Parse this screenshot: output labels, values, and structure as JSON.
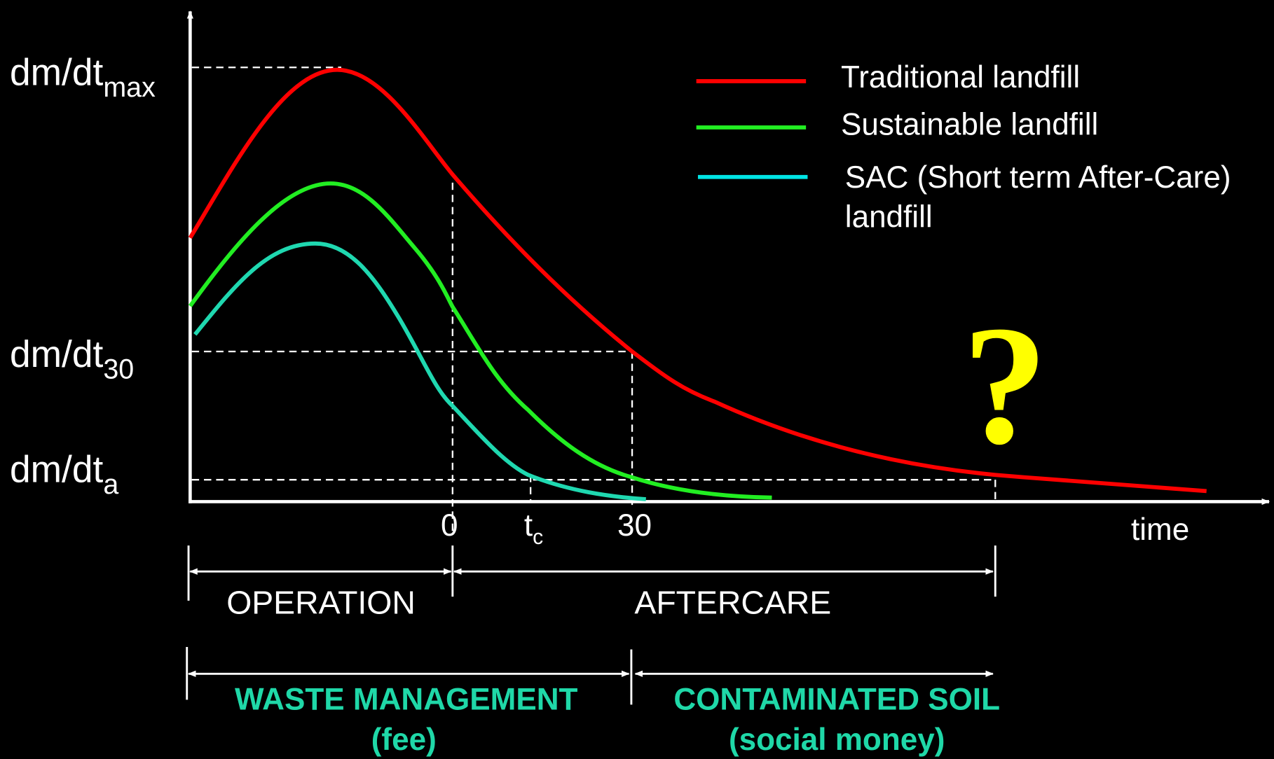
{
  "y_labels": [
    {
      "main": "dm/dt",
      "sub": "max"
    },
    {
      "main": "dm/dt",
      "sub": "30"
    },
    {
      "main": "dm/dt",
      "sub": "a"
    }
  ],
  "x_labels": {
    "zero": "0",
    "tc_main": "t",
    "tc_sub": "c",
    "thirty": "30",
    "axis": "time"
  },
  "legend": [
    "Traditional landfill",
    "Sustainable landfill",
    "SAC (Short term After-Care)",
    "landfill"
  ],
  "phases": {
    "operation": "OPERATION",
    "aftercare": "AFTERCARE"
  },
  "costs": {
    "waste_management": "WASTE MANAGEMENT",
    "fee": "(fee)",
    "contaminated_soil": "CONTAMINATED SOIL",
    "social_money": "(social money)"
  },
  "question": "?"
}
